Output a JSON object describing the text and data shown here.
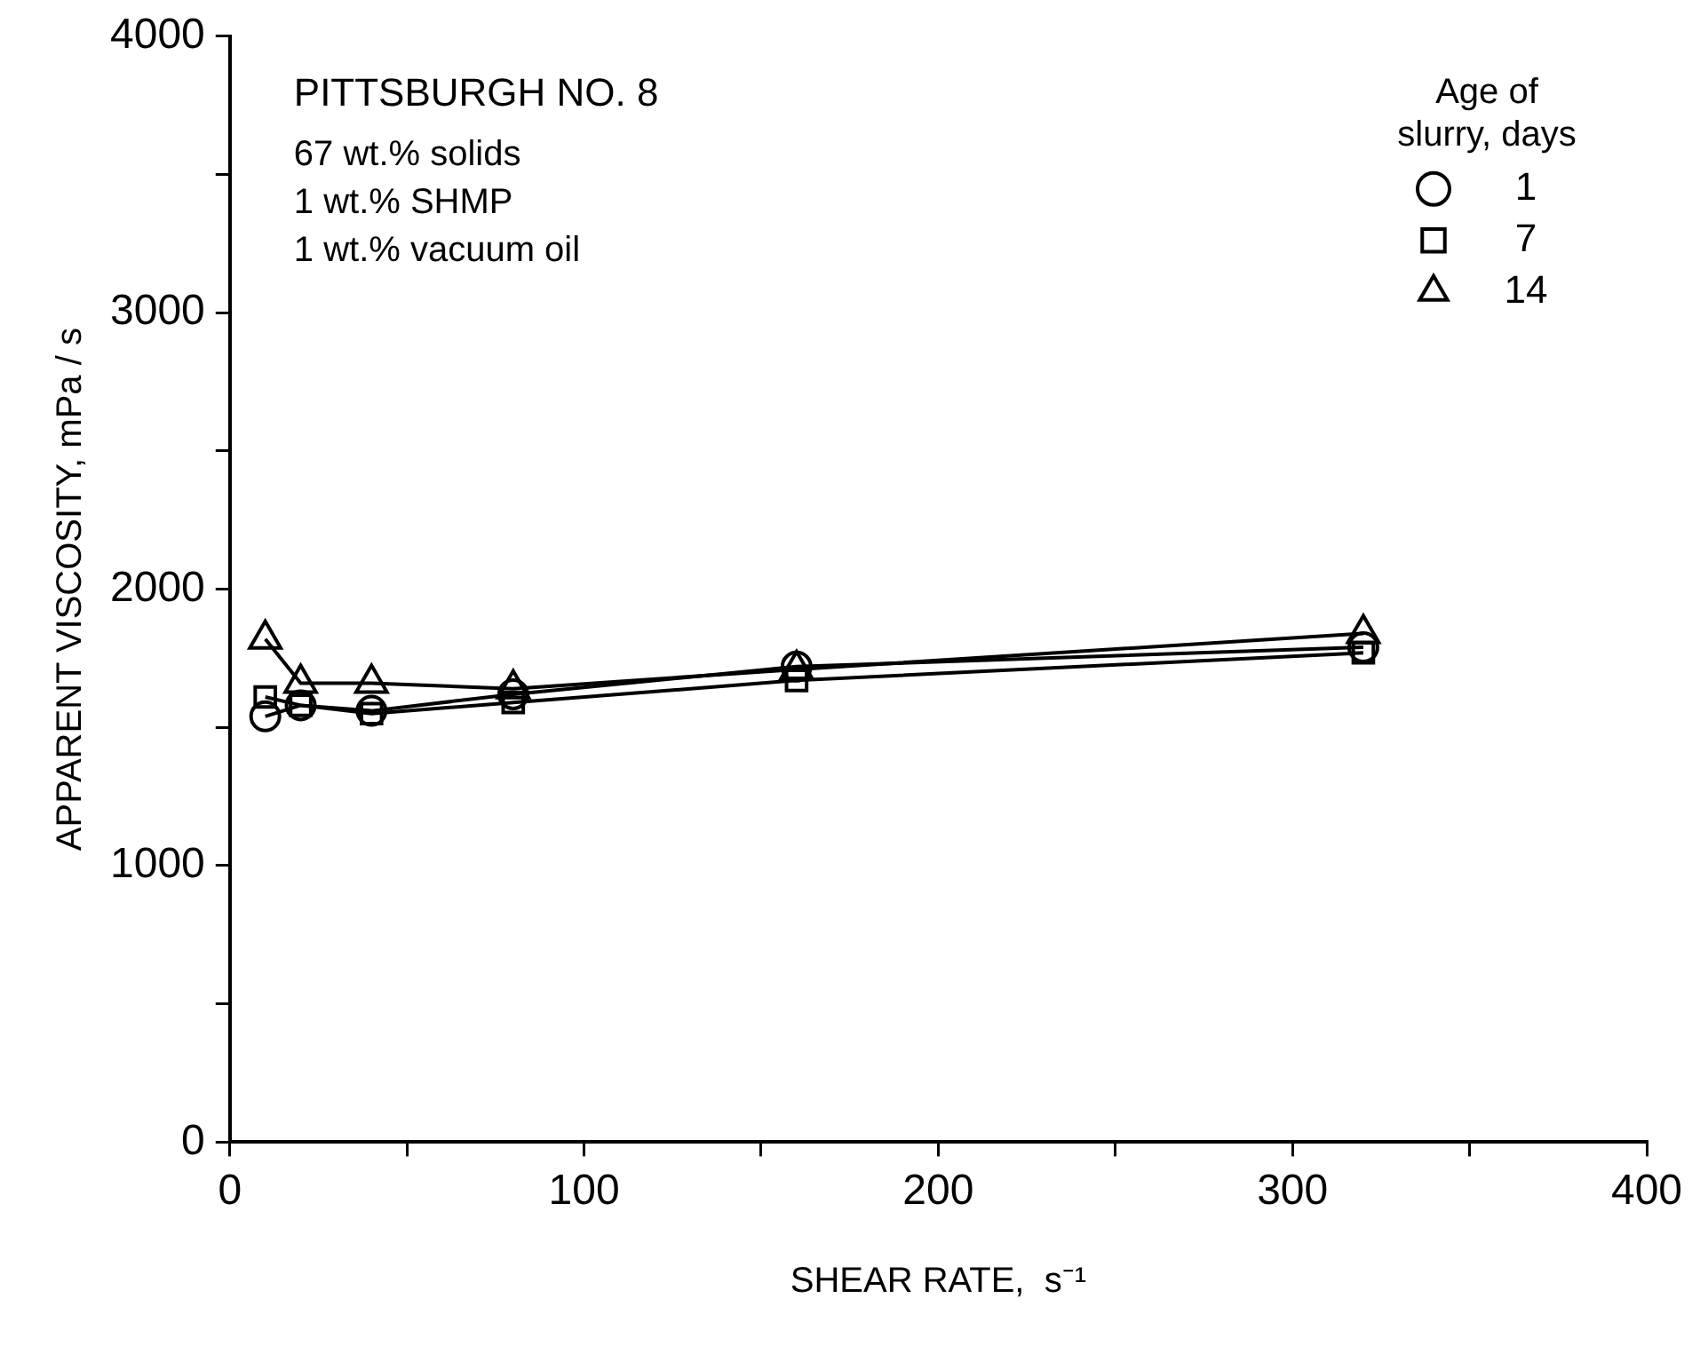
{
  "chart_data": {
    "type": "line",
    "xlabel": "SHEAR RATE,  s⁻¹",
    "ylabel": "APPARENT VISCOSITY, mPa / s",
    "legend_title": "Age of slurry, days",
    "legend": "top right",
    "grid": false,
    "line_style": "solid",
    "x": [
      10,
      20,
      40,
      80,
      160,
      320
    ],
    "xlim": [
      0,
      400
    ],
    "xticks": [
      0,
      {
        "value": 50,
        "label": null
      },
      100,
      {
        "value": 150,
        "label": null
      },
      200,
      {
        "value": 250,
        "label": null
      },
      300,
      {
        "value": 350,
        "label": null
      },
      400
    ],
    "ylim": [
      0,
      4000
    ],
    "yticks": [
      0,
      {
        "value": 500,
        "label": null
      },
      1000,
      {
        "value": 1500,
        "label": null
      },
      2000,
      {
        "value": 2500,
        "label": null
      },
      3000,
      {
        "value": 3500,
        "label": null
      },
      4000
    ],
    "annotations": [
      "PITTSBURGH NO. 8",
      "67 wt.% solids",
      "1 wt.% SHMP",
      "1 wt.% vacuum oil"
    ],
    "series": [
      {
        "name": "1",
        "color": "#000000",
        "marker": "circle",
        "values": [
          1540,
          1580,
          1560,
          1620,
          1720,
          1790
        ]
      },
      {
        "name": "7",
        "color": "#000000",
        "marker": "square",
        "values": [
          1610,
          1580,
          1550,
          1590,
          1670,
          1770
        ]
      },
      {
        "name": "14",
        "color": "#000000",
        "marker": "triangle",
        "values": [
          1820,
          1660,
          1660,
          1640,
          1710,
          1840
        ]
      }
    ]
  }
}
